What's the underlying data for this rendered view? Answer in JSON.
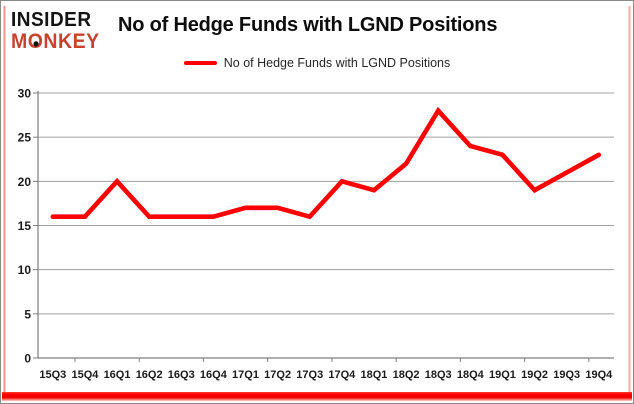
{
  "brand": {
    "line1": "INSIDER",
    "line2_pre": "M",
    "line2_o": "O",
    "line2_post": "NKEY"
  },
  "header": {
    "title": "No of Hedge Funds with LGND Positions"
  },
  "legend": {
    "label": "No of Hedge Funds with LGND Positions"
  },
  "colors": {
    "line": "#fe0000",
    "grid": "#a0a0a0",
    "axis": "#7f7f7f",
    "tick": "#7f7f7f",
    "axis_text": "#1a1a1a",
    "brand_red": "#c8432f",
    "accent_bottom": "#fe0000"
  },
  "chart_data": {
    "type": "line",
    "title": "No of Hedge Funds with LGND Positions",
    "categories": [
      "15Q3",
      "15Q4",
      "16Q1",
      "16Q2",
      "16Q3",
      "16Q4",
      "17Q1",
      "17Q2",
      "17Q3",
      "17Q4",
      "18Q1",
      "18Q2",
      "18Q3",
      "18Q4",
      "19Q1",
      "19Q2",
      "19Q3",
      "19Q4"
    ],
    "series": [
      {
        "name": "No of Hedge Funds with LGND Positions",
        "values": [
          16,
          16,
          20,
          16,
          16,
          16,
          17,
          17,
          16,
          20,
          19,
          22,
          28,
          24,
          23,
          19,
          21,
          23
        ]
      }
    ],
    "xlabel": "",
    "ylabel": "",
    "ylim": [
      0,
      30
    ],
    "yticks": [
      0,
      5,
      10,
      15,
      20,
      25,
      30
    ],
    "grid": true,
    "legend_position": "top-center"
  }
}
